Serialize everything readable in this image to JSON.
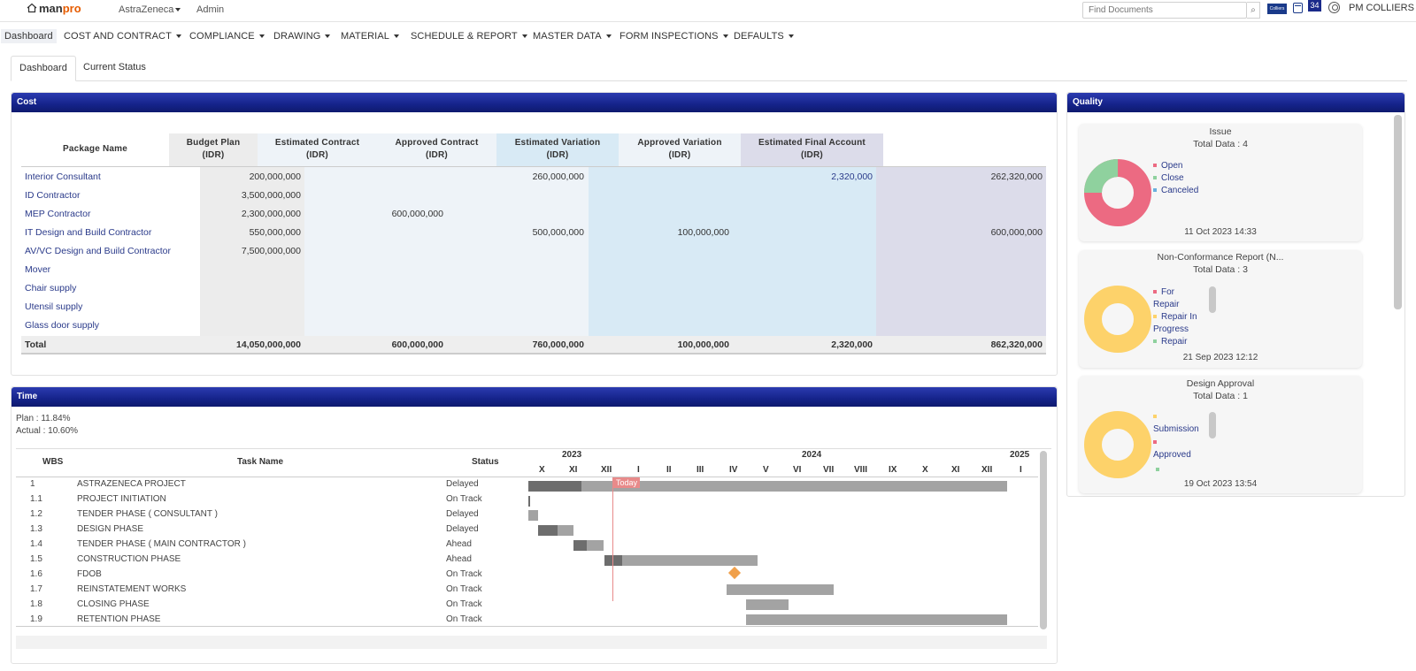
{
  "topbar": {
    "logo_main": "man",
    "logo_accent": "pro",
    "project": "AstraZeneca",
    "admin": "Admin",
    "search_placeholder": "Find Documents",
    "colliers_logo": "Colliers",
    "notification_count": "34",
    "user": "PM COLLIERS"
  },
  "nav": {
    "dashboard": "Dashboard",
    "cost_contract": "COST AND CONTRACT",
    "compliance": "COMPLIANCE",
    "drawing": "DRAWING",
    "material": "MATERIAL",
    "schedule_report": "SCHEDULE & REPORT",
    "master_data": "MASTER DATA",
    "form_inspections": "FORM INSPECTIONS",
    "defaults": "DEFAULTS"
  },
  "tabs": {
    "dashboard": "Dashboard",
    "current_status": "Current Status"
  },
  "cost": {
    "title": "Cost",
    "headers": {
      "package": "Package Name",
      "budget_1": "Budget Plan",
      "budget_2": "(IDR)",
      "est_contract_1": "Estimated Contract",
      "est_contract_2": "(IDR)",
      "appr_contract_1": "Approved Contract",
      "appr_contract_2": "(IDR)",
      "est_var_1": "Estimated Variation",
      "est_var_2": "(IDR)",
      "appr_var_1": "Approved Variation",
      "appr_var_2": "(IDR)",
      "final_1": "Estimated Final Account",
      "final_2": "(IDR)"
    },
    "rows": [
      {
        "name": "Interior Consultant",
        "budget": "200,000,000",
        "est_contract": "",
        "appr_contract": "260,000,000",
        "est_var": "",
        "appr_var": "2,320,000",
        "final": "262,320,000"
      },
      {
        "name": "ID Contractor",
        "budget": "3,500,000,000",
        "est_contract": "",
        "appr_contract": "",
        "est_var": "",
        "appr_var": "",
        "final": ""
      },
      {
        "name": "MEP Contractor",
        "budget": "2,300,000,000",
        "est_contract": "600,000,000",
        "appr_contract": "",
        "est_var": "",
        "appr_var": "",
        "final": ""
      },
      {
        "name": "IT Design and Build Contractor",
        "budget": "550,000,000",
        "est_contract": "",
        "appr_contract": "500,000,000",
        "est_var": "100,000,000",
        "appr_var": "",
        "final": "600,000,000"
      },
      {
        "name": "AV/VC Design and Build Contractor",
        "budget": "7,500,000,000",
        "est_contract": "",
        "appr_contract": "",
        "est_var": "",
        "appr_var": "",
        "final": ""
      },
      {
        "name": "Mover",
        "budget": "",
        "est_contract": "",
        "appr_contract": "",
        "est_var": "",
        "appr_var": "",
        "final": ""
      },
      {
        "name": "Chair supply",
        "budget": "",
        "est_contract": "",
        "appr_contract": "",
        "est_var": "",
        "appr_var": "",
        "final": ""
      },
      {
        "name": "Utensil supply",
        "budget": "",
        "est_contract": "",
        "appr_contract": "",
        "est_var": "",
        "appr_var": "",
        "final": ""
      },
      {
        "name": "Glass door supply",
        "budget": "",
        "est_contract": "",
        "appr_contract": "",
        "est_var": "",
        "appr_var": "",
        "final": ""
      }
    ],
    "total": {
      "label": "Total",
      "budget": "14,050,000,000",
      "est_contract": "600,000,000",
      "appr_contract": "760,000,000",
      "est_var": "100,000,000",
      "appr_var": "2,320,000",
      "final": "862,320,000"
    }
  },
  "time": {
    "title": "Time",
    "plan": "Plan : 11.84%",
    "actual": "Actual : 10.60%",
    "headers": {
      "wbs": "WBS",
      "task": "Task Name",
      "status": "Status"
    },
    "years": [
      "2023",
      "2024",
      "2025"
    ],
    "months": [
      "X",
      "XI",
      "XII",
      "I",
      "II",
      "III",
      "IV",
      "V",
      "VI",
      "VII",
      "VIII",
      "IX",
      "X",
      "XI",
      "XII",
      "I"
    ],
    "today_label": "Today",
    "tasks": [
      {
        "wbs": "1",
        "name": "ASTRAZENECA PROJECT",
        "status": "Delayed"
      },
      {
        "wbs": "1.1",
        "name": "PROJECT INITIATION",
        "status": "On Track"
      },
      {
        "wbs": "1.2",
        "name": "TENDER PHASE ( CONSULTANT )",
        "status": "Delayed"
      },
      {
        "wbs": "1.3",
        "name": "DESIGN PHASE",
        "status": "Delayed"
      },
      {
        "wbs": "1.4",
        "name": "TENDER PHASE ( MAIN CONTRACTOR )",
        "status": "Ahead"
      },
      {
        "wbs": "1.5",
        "name": "CONSTRUCTION PHASE",
        "status": "Ahead"
      },
      {
        "wbs": "1.6",
        "name": "FDOB",
        "status": "On Track"
      },
      {
        "wbs": "1.7",
        "name": "REINSTATEMENT WORKS",
        "status": "On Track"
      },
      {
        "wbs": "1.8",
        "name": "CLOSING PHASE",
        "status": "On Track"
      },
      {
        "wbs": "1.9",
        "name": "RETENTION PHASE",
        "status": "On Track"
      }
    ]
  },
  "quality": {
    "title": "Quality",
    "cards": [
      {
        "title": "Issue",
        "total": "Total Data : 4",
        "date": "11 Oct 2023 14:33",
        "legend": [
          "Open",
          "Close",
          "Canceled"
        ]
      },
      {
        "title": "Non-Conformance Report (N...",
        "total": "Total Data : 3",
        "date": "21 Sep 2023 12:12",
        "legend": [
          "For Repair",
          "Repair In Progress",
          "Repair"
        ]
      },
      {
        "title": "Design Approval",
        "total": "Total Data : 1",
        "date": "19 Oct 2023 13:54",
        "legend": [
          "Submission",
          "Approved"
        ]
      }
    ]
  },
  "colors": {
    "header_blue": "#15238a",
    "pie_red": "#ec6a82",
    "pie_green": "#8fd19e",
    "pie_yellow": "#fdd26a",
    "bar_dark": "#6d6d6d",
    "bar_light": "#a3a3a3",
    "today_line": "#e88a8a",
    "milestone": "#f0a04b"
  }
}
